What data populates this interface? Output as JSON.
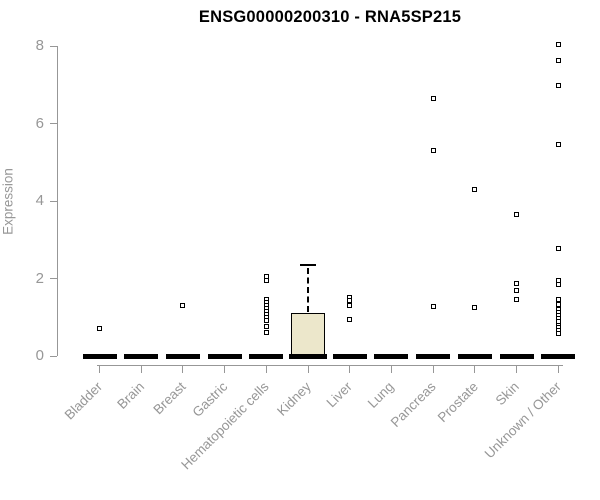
{
  "chart_data": {
    "type": "boxplot",
    "title": "ENSG00000200310 - RNA5SP215",
    "ylabel": "Expression",
    "xlabel": "",
    "ylim": [
      0,
      8
    ],
    "yticks": [
      0,
      2,
      4,
      6,
      8
    ],
    "grid": "off",
    "legend": "none",
    "categories": [
      "Bladder",
      "Brain",
      "Breast",
      "Gastric",
      "Hematopoietic cells",
      "Kidney",
      "Liver",
      "Lung",
      "Pancreas",
      "Prostate",
      "Skin",
      "Unknown / Other"
    ],
    "boxes": [
      {
        "category": "Bladder",
        "q1": 0,
        "median": 0,
        "q3": 0,
        "whisker_low": 0,
        "whisker_high": 0,
        "outliers": [
          0.72
        ]
      },
      {
        "category": "Brain",
        "q1": 0,
        "median": 0,
        "q3": 0,
        "whisker_low": 0,
        "whisker_high": 0,
        "outliers": []
      },
      {
        "category": "Breast",
        "q1": 0,
        "median": 0,
        "q3": 0,
        "whisker_low": 0,
        "whisker_high": 0,
        "outliers": [
          1.3
        ]
      },
      {
        "category": "Gastric",
        "q1": 0,
        "median": 0,
        "q3": 0,
        "whisker_low": 0,
        "whisker_high": 0,
        "outliers": []
      },
      {
        "category": "Hematopoietic cells",
        "q1": 0,
        "median": 0,
        "q3": 0,
        "whisker_low": 0,
        "whisker_high": 0,
        "outliers": [
          2.05,
          1.95,
          1.45,
          1.38,
          1.3,
          1.22,
          1.15,
          1.08,
          1.0,
          0.92,
          0.77,
          0.6
        ]
      },
      {
        "category": "Kidney",
        "q1": 0,
        "median": 0,
        "q3": 1.1,
        "whisker_low": 0,
        "whisker_high": 2.35,
        "outliers": []
      },
      {
        "category": "Liver",
        "q1": 0,
        "median": 0,
        "q3": 0,
        "whisker_low": 0,
        "whisker_high": 0,
        "outliers": [
          1.52,
          1.42,
          1.3,
          0.93
        ]
      },
      {
        "category": "Lung",
        "q1": 0,
        "median": 0,
        "q3": 0,
        "whisker_low": 0,
        "whisker_high": 0,
        "outliers": []
      },
      {
        "category": "Pancreas",
        "q1": 0,
        "median": 0,
        "q3": 0,
        "whisker_low": 0,
        "whisker_high": 0,
        "outliers": [
          6.65,
          5.3,
          1.28
        ]
      },
      {
        "category": "Prostate",
        "q1": 0,
        "median": 0,
        "q3": 0,
        "whisker_low": 0,
        "whisker_high": 0,
        "outliers": [
          4.3,
          1.24
        ]
      },
      {
        "category": "Skin",
        "q1": 0,
        "median": 0,
        "q3": 0,
        "whisker_low": 0,
        "whisker_high": 0,
        "outliers": [
          3.65,
          1.86,
          1.7,
          1.45
        ]
      },
      {
        "category": "Unknown / Other",
        "q1": 0,
        "median": 0,
        "q3": 0,
        "whisker_low": 0,
        "whisker_high": 0,
        "outliers": [
          8.05,
          7.62,
          6.98,
          5.47,
          2.78,
          1.96,
          1.84,
          1.45,
          1.33,
          1.2,
          1.12,
          1.04,
          0.96,
          0.88,
          0.8,
          0.73,
          0.66,
          0.59
        ]
      }
    ],
    "colors": {
      "box_fill": "#ece7cb",
      "box_border": "#000000",
      "median": "#000000",
      "outlier_border": "#000000",
      "outlier_fill": "#ffffff",
      "axis": "#979797",
      "tick_label": "#979797",
      "title": "#000000"
    }
  }
}
